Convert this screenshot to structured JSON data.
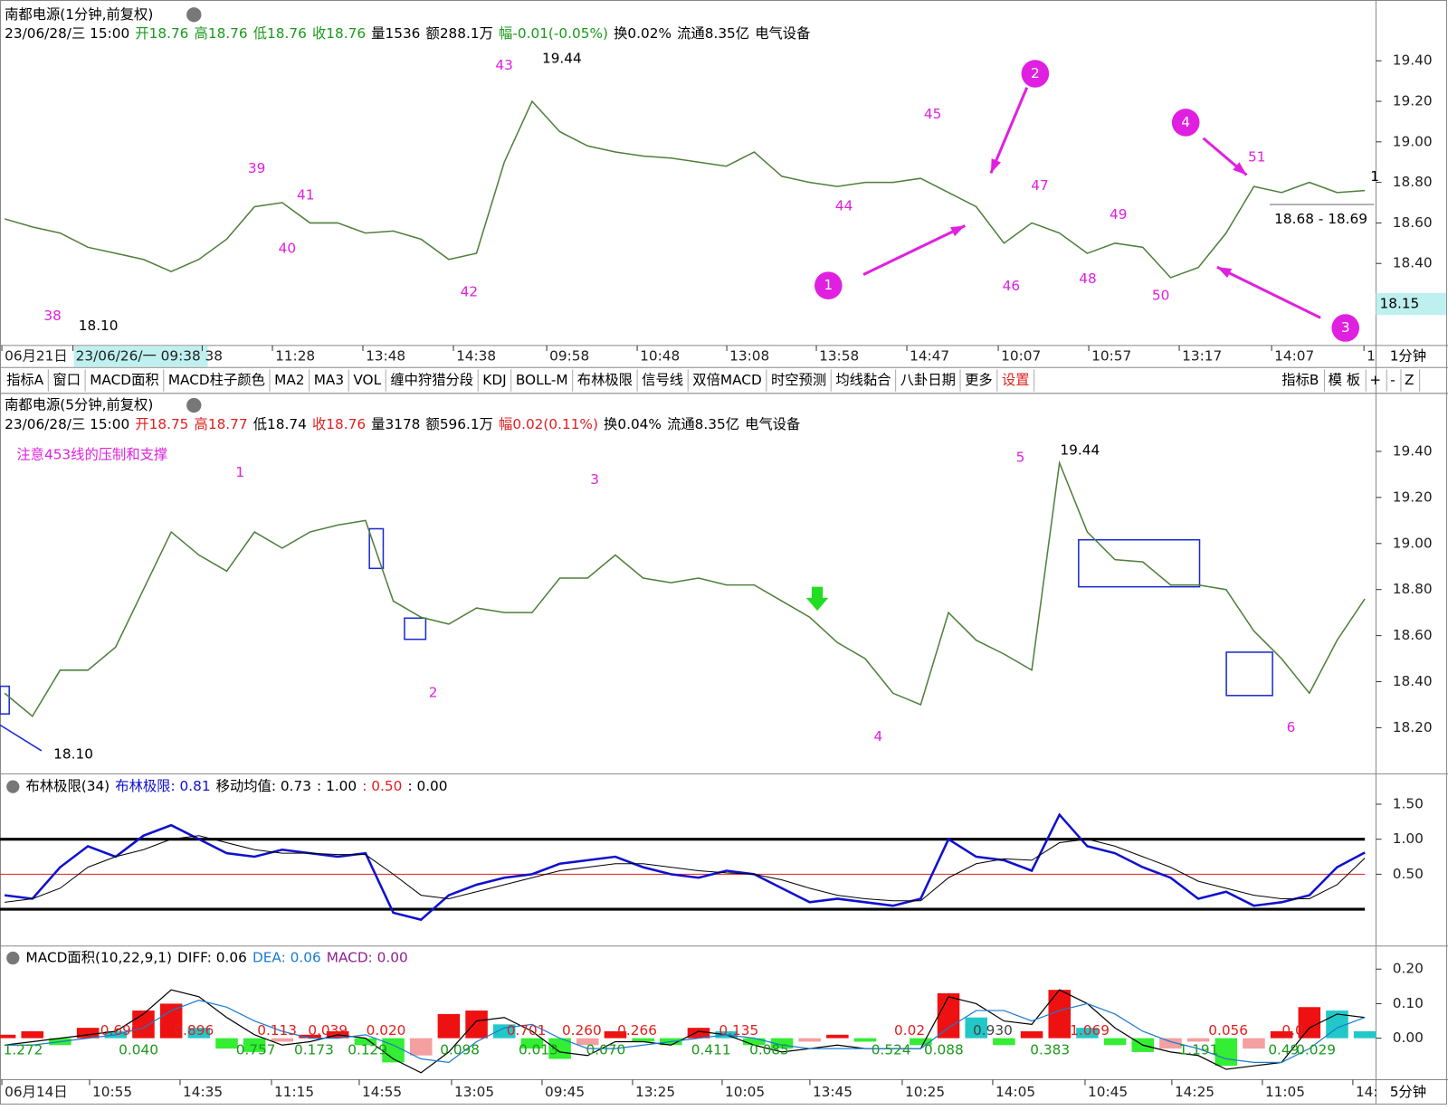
{
  "top_panel": {
    "title": "南都电源(1分钟,前复权)",
    "info": [
      {
        "text": "23/06/28/三 15:00",
        "color": "#000"
      },
      {
        "text": "开18.76",
        "color": "#1a9a1a"
      },
      {
        "text": "高18.76",
        "color": "#1a9a1a"
      },
      {
        "text": "低18.76",
        "color": "#1a9a1a"
      },
      {
        "text": "收18.76",
        "color": "#1a9a1a"
      },
      {
        "text": "量1536",
        "color": "#000"
      },
      {
        "text": "额288.1万",
        "color": "#000"
      },
      {
        "text": "幅-0.01(-0.05%)",
        "color": "#1a9a1a"
      },
      {
        "text": "换0.02%",
        "color": "#000"
      },
      {
        "text": "流通8.35亿",
        "color": "#000"
      },
      {
        "text": "电气设备",
        "color": "#000"
      }
    ],
    "chart": {
      "type": "line",
      "color": "#4f7f3a",
      "ylim": [
        18.0,
        19.5
      ],
      "yticks": [
        {
          "value": 19.4,
          "label": "19.40"
        },
        {
          "value": 19.2,
          "label": "19.20"
        },
        {
          "value": 19.0,
          "label": "19.00"
        },
        {
          "value": 18.8,
          "label": "18.80"
        },
        {
          "value": 18.6,
          "label": "18.60"
        },
        {
          "value": 18.4,
          "label": "18.40"
        }
      ],
      "values": [
        18.62,
        18.58,
        18.55,
        18.48,
        18.45,
        18.42,
        18.36,
        18.42,
        18.52,
        18.68,
        18.7,
        18.6,
        18.6,
        18.55,
        18.56,
        18.52,
        18.42,
        18.45,
        18.9,
        19.2,
        19.05,
        18.98,
        18.95,
        18.93,
        18.92,
        18.9,
        18.88,
        18.95,
        18.83,
        18.8,
        18.78,
        18.8,
        18.8,
        18.82,
        18.75,
        18.68,
        18.5,
        18.6,
        18.55,
        18.45,
        18.5,
        18.48,
        18.33,
        18.38,
        18.55,
        18.78,
        18.75,
        18.8,
        18.75,
        18.76
      ]
    },
    "labels": [
      "38",
      "39",
      "40",
      "41",
      "42",
      "43",
      "44",
      "45",
      "46",
      "47",
      "48",
      "49",
      "50",
      "51"
    ],
    "circled": [
      "1",
      "2",
      "3",
      "4"
    ],
    "high_label": "19.44",
    "low_label": "18.10",
    "range_label": "18.68 - 18.69",
    "last_label": "1",
    "price_box": "18.15"
  },
  "top_x_labels": [
    "06月21日",
    "23/06/26/一 09:38",
    "38",
    "11:28",
    "13:48",
    "14:38",
    "09:58",
    "10:48",
    "13:08",
    "13:58",
    "14:47",
    "10:07",
    "10:57",
    "13:17",
    "14:07",
    "1"
  ],
  "top_period": "1分钟",
  "toolbar": {
    "left": [
      "指标A",
      "窗口",
      "MACD面积",
      "MACD柱子颜色",
      "MA2",
      "MA3",
      "VOL",
      "缠中狩猎分段",
      "KDJ",
      "BOLL-M",
      "布林极限",
      "信号线",
      "双倍MACD",
      "时空预测",
      "均线黏合",
      "八卦日期",
      "更多",
      "设置"
    ],
    "right": [
      "指标B",
      "模 板",
      "+",
      "-",
      "Z"
    ]
  },
  "mid_panel": {
    "title": "南都电源(5分钟,前复权)",
    "info": [
      {
        "text": "23/06/28/三 15:00",
        "color": "#000"
      },
      {
        "text": "开18.75",
        "color": "#e02020"
      },
      {
        "text": "高18.77",
        "color": "#e02020"
      },
      {
        "text": "低18.74",
        "color": "#000"
      },
      {
        "text": "收18.76",
        "color": "#e02020"
      },
      {
        "text": "量3178",
        "color": "#000"
      },
      {
        "text": "额596.1万",
        "color": "#000"
      },
      {
        "text": "幅0.02(0.11%)",
        "color": "#e02020"
      },
      {
        "text": "换0.04%",
        "color": "#000"
      },
      {
        "text": "流通8.35亿",
        "color": "#000"
      },
      {
        "text": "电气设备",
        "color": "#000"
      }
    ],
    "note": "注意453线的压制和支撑",
    "chart": {
      "type": "line",
      "color": "#4f7f3a",
      "ylim": [
        18.0,
        19.5
      ],
      "yticks": [
        {
          "value": 19.4,
          "label": "19.40"
        },
        {
          "value": 19.2,
          "label": "19.20"
        },
        {
          "value": 19.0,
          "label": "19.00"
        },
        {
          "value": 18.8,
          "label": "18.80"
        },
        {
          "value": 18.6,
          "label": "18.60"
        },
        {
          "value": 18.4,
          "label": "18.40"
        },
        {
          "value": 18.2,
          "label": "18.20"
        }
      ],
      "values": [
        18.35,
        18.25,
        18.45,
        18.45,
        18.55,
        18.8,
        19.05,
        18.95,
        18.88,
        19.05,
        18.98,
        19.05,
        19.08,
        19.1,
        18.75,
        18.68,
        18.65,
        18.72,
        18.7,
        18.7,
        18.85,
        18.85,
        18.95,
        18.85,
        18.83,
        18.85,
        18.82,
        18.82,
        18.75,
        18.68,
        18.57,
        18.5,
        18.35,
        18.3,
        18.7,
        18.58,
        18.52,
        18.45,
        19.35,
        19.05,
        18.93,
        18.92,
        18.82,
        18.82,
        18.8,
        18.62,
        18.5,
        18.35,
        18.58,
        18.76
      ]
    },
    "labels": [
      "1",
      "2",
      "3",
      "4",
      "5",
      "6"
    ],
    "high_label": "19.44",
    "low_label": "18.10"
  },
  "boll_panel": {
    "info": [
      {
        "text": "布林极限(34)",
        "color": "#000"
      },
      {
        "text": "布林极限: 0.81",
        "color": "#1010d0"
      },
      {
        "text": "移动均值: 0.73",
        "color": "#000"
      },
      {
        "text": ": 1.00",
        "color": "#000"
      },
      {
        "text": ": 0.50",
        "color": "#e02020"
      },
      {
        "text": ": 0.00",
        "color": "#000"
      }
    ],
    "chart": {
      "type": "line",
      "ylim": [
        -0.5,
        1.8
      ],
      "yticks": [
        {
          "value": 1.5,
          "label": "1.50"
        },
        {
          "value": 1.0,
          "label": "1.00"
        },
        {
          "value": 0.5,
          "label": "0.50"
        }
      ],
      "ref_lines": [
        {
          "value": 1.0,
          "color": "#000"
        },
        {
          "value": 0.5,
          "color": "#e02020"
        },
        {
          "value": 0,
          "color": "#000"
        }
      ],
      "series": [
        {
          "name": "布林极限",
          "color": "#1010d0",
          "values": [
            0.2,
            0.15,
            0.6,
            0.9,
            0.75,
            1.05,
            1.2,
            1.0,
            0.8,
            0.75,
            0.85,
            0.8,
            0.75,
            0.8,
            -0.05,
            -0.15,
            0.2,
            0.35,
            0.45,
            0.5,
            0.65,
            0.7,
            0.75,
            0.6,
            0.5,
            0.45,
            0.55,
            0.5,
            0.3,
            0.1,
            0.15,
            0.1,
            0.05,
            0.15,
            1.0,
            0.75,
            0.7,
            0.55,
            1.35,
            0.9,
            0.8,
            0.6,
            0.45,
            0.15,
            0.25,
            0.05,
            0.1,
            0.2,
            0.6,
            0.81
          ]
        },
        {
          "name": "移动均值",
          "color": "#000",
          "values": [
            0.1,
            0.15,
            0.3,
            0.6,
            0.75,
            0.85,
            1.0,
            1.05,
            0.95,
            0.85,
            0.8,
            0.8,
            0.78,
            0.78,
            0.5,
            0.2,
            0.15,
            0.25,
            0.35,
            0.45,
            0.55,
            0.6,
            0.65,
            0.65,
            0.6,
            0.55,
            0.52,
            0.5,
            0.42,
            0.3,
            0.2,
            0.15,
            0.12,
            0.12,
            0.45,
            0.65,
            0.72,
            0.7,
            0.95,
            1.0,
            0.9,
            0.75,
            0.6,
            0.4,
            0.3,
            0.2,
            0.15,
            0.15,
            0.35,
            0.73
          ]
        }
      ]
    }
  },
  "macd_panel": {
    "info": [
      {
        "text": "MACD面积(10,22,9,1)",
        "color": "#000"
      },
      {
        "text": "DIFF: 0.06",
        "color": "#000"
      },
      {
        "text": "DEA: 0.06",
        "color": "#1a7ad0"
      },
      {
        "text": "MACD: 0.00",
        "color": "#902090"
      }
    ],
    "chart": {
      "type": "bar",
      "ylim": [
        -0.15,
        0.25
      ],
      "yticks": [
        {
          "value": 0.2,
          "label": "0.20"
        },
        {
          "value": 0.1,
          "label": "0.10"
        },
        {
          "value": 0,
          "label": "0.00"
        }
      ],
      "values": [
        0.01,
        0.02,
        -0.02,
        0.03,
        0.02,
        0.08,
        0.1,
        0.03,
        -0.03,
        -0.04,
        -0.01,
        0.01,
        0.02,
        -0.02,
        -0.07,
        -0.05,
        0.07,
        0.08,
        0.04,
        -0.03,
        -0.06,
        -0.02,
        0.02,
        -0.01,
        -0.02,
        0.03,
        0.02,
        -0.02,
        -0.03,
        -0.01,
        0.01,
        -0.01,
        0,
        -0.02,
        0.13,
        0.06,
        -0.02,
        0.02,
        0.14,
        0.03,
        -0.02,
        -0.04,
        -0.03,
        -0.01,
        -0.08,
        -0.03,
        0.02,
        0.09,
        0.08,
        0.02
      ],
      "series": [
        {
          "name": "DIFF",
          "color": "#000",
          "values": [
            -0.02,
            -0.01,
            0,
            0.01,
            0.02,
            0.07,
            0.14,
            0.12,
            0.06,
            0.01,
            -0.02,
            -0.01,
            0.01,
            0,
            -0.06,
            -0.1,
            -0.04,
            0.05,
            0.06,
            0.02,
            -0.04,
            -0.05,
            -0.01,
            -0.01,
            -0.02,
            0.02,
            0.01,
            -0.02,
            -0.04,
            -0.03,
            -0.02,
            -0.03,
            -0.03,
            -0.03,
            0.12,
            0.1,
            0.05,
            0.04,
            0.14,
            0.1,
            0.03,
            -0.02,
            -0.04,
            -0.05,
            -0.09,
            -0.08,
            -0.07,
            0.03,
            0.07,
            0.06
          ]
        },
        {
          "name": "DEA",
          "color": "#1a7ad0",
          "values": [
            -0.02,
            -0.02,
            -0.01,
            0,
            0.01,
            0.03,
            0.08,
            0.11,
            0.09,
            0.05,
            0.02,
            0,
            0,
            0.01,
            -0.02,
            -0.06,
            -0.07,
            -0.01,
            0.03,
            0.04,
            0,
            -0.03,
            -0.03,
            -0.02,
            -0.01,
            0,
            0.01,
            0,
            -0.02,
            -0.03,
            -0.03,
            -0.03,
            -0.03,
            -0.03,
            0.03,
            0.08,
            0.08,
            0.05,
            0.08,
            0.1,
            0.07,
            0.02,
            -0.01,
            -0.03,
            -0.06,
            -0.07,
            -0.07,
            -0.03,
            0.03,
            0.06
          ]
        }
      ]
    },
    "up_labels": [
      "0.690",
      "0.896",
      "0.113",
      "0.039",
      "0.020",
      "0.701",
      "0.260",
      "0.266",
      "0.135",
      "0.02",
      "0.930",
      "1.069",
      "0.056",
      "0.0"
    ],
    "down_labels": [
      "1.272",
      "0.040",
      "0.757",
      "0.173",
      "0.129",
      "0.098",
      "0.013",
      "0.070",
      "0.411",
      "0.085",
      "0.524",
      "0.088",
      "0.383",
      "1.191",
      "0.49",
      "0.029"
    ]
  },
  "bottom_x_labels": [
    "06月14日",
    "10:55",
    "14:35",
    "11:15",
    "14:55",
    "13:05",
    "09:45",
    "13:25",
    "10:05",
    "13:45",
    "10:25",
    "14:05",
    "10:45",
    "14:25",
    "11:05",
    "14:"
  ],
  "bottom_period": "5分钟"
}
